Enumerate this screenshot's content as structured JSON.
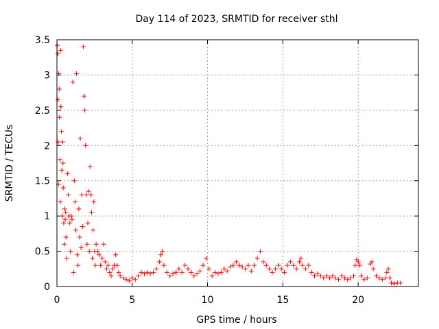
{
  "chart_data": {
    "type": "scatter",
    "title": "Day 114 of 2023, SRMTID for receiver sthl",
    "xlabel": "GPS time / hours",
    "ylabel": "SRMTID / TECUs",
    "xlim": [
      0,
      24
    ],
    "ylim": [
      0,
      3.5
    ],
    "xticks": [
      0,
      5,
      10,
      15,
      20
    ],
    "xtick_labels": [
      "0",
      "5",
      "10",
      "15",
      "20"
    ],
    "yticks": [
      0,
      0.5,
      1,
      1.5,
      2,
      2.5,
      3,
      3.5
    ],
    "ytick_labels": [
      "0",
      "0.5",
      "1",
      "1.5",
      "2",
      "2.5",
      "3",
      "3.5"
    ],
    "grid": true,
    "marker": "+",
    "color": "#ff0000",
    "series": [
      {
        "name": "SRMTID",
        "points": [
          [
            0.02,
            3.42
          ],
          [
            0.05,
            3.3
          ],
          [
            0.06,
            2.65
          ],
          [
            0.08,
            2.05
          ],
          [
            0.1,
            1.45
          ],
          [
            0.12,
            3.02
          ],
          [
            0.15,
            2.8
          ],
          [
            0.17,
            2.4
          ],
          [
            0.2,
            1.8
          ],
          [
            0.22,
            1.2
          ],
          [
            0.24,
            3.35
          ],
          [
            0.26,
            2.55
          ],
          [
            0.3,
            2.2
          ],
          [
            0.32,
            1.65
          ],
          [
            0.35,
            1.0
          ],
          [
            0.38,
            2.05
          ],
          [
            0.4,
            1.75
          ],
          [
            0.42,
            1.4
          ],
          [
            0.45,
            0.9
          ],
          [
            0.48,
            0.6
          ],
          [
            0.5,
            1.1
          ],
          [
            0.55,
            0.95
          ],
          [
            0.58,
            1.05
          ],
          [
            0.6,
            0.7
          ],
          [
            0.65,
            0.4
          ],
          [
            0.7,
            1.6
          ],
          [
            0.75,
            1.3
          ],
          [
            0.8,
            1.0
          ],
          [
            0.85,
            0.9
          ],
          [
            0.9,
            0.5
          ],
          [
            0.95,
            1.0
          ],
          [
            1.0,
            0.95
          ],
          [
            1.05,
            2.9
          ],
          [
            1.1,
            0.2
          ],
          [
            1.15,
            1.5
          ],
          [
            1.2,
            1.2
          ],
          [
            1.25,
            0.8
          ],
          [
            1.3,
            3.02
          ],
          [
            1.35,
            0.45
          ],
          [
            1.4,
            0.3
          ],
          [
            1.45,
            1.1
          ],
          [
            1.5,
            0.7
          ],
          [
            1.55,
            2.1
          ],
          [
            1.6,
            0.55
          ],
          [
            1.65,
            1.3
          ],
          [
            1.7,
            0.85
          ],
          [
            1.75,
            3.4
          ],
          [
            1.8,
            2.7
          ],
          [
            1.85,
            2.5
          ],
          [
            1.9,
            2.0
          ],
          [
            1.95,
            1.3
          ],
          [
            2.0,
            0.6
          ],
          [
            2.05,
            0.9
          ],
          [
            2.1,
            1.35
          ],
          [
            2.15,
            0.5
          ],
          [
            2.2,
            1.7
          ],
          [
            2.25,
            1.3
          ],
          [
            2.3,
            1.05
          ],
          [
            2.35,
            0.4
          ],
          [
            2.4,
            0.8
          ],
          [
            2.45,
            1.2
          ],
          [
            2.5,
            0.5
          ],
          [
            2.55,
            0.3
          ],
          [
            2.6,
            0.6
          ],
          [
            2.7,
            0.5
          ],
          [
            2.8,
            0.45
          ],
          [
            2.9,
            0.3
          ],
          [
            3.0,
            0.4
          ],
          [
            3.1,
            0.6
          ],
          [
            3.2,
            0.35
          ],
          [
            3.3,
            0.25
          ],
          [
            3.4,
            0.3
          ],
          [
            3.5,
            0.2
          ],
          [
            3.6,
            0.15
          ],
          [
            3.7,
            0.25
          ],
          [
            3.8,
            0.3
          ],
          [
            3.9,
            0.45
          ],
          [
            4.0,
            0.3
          ],
          [
            4.1,
            0.2
          ],
          [
            4.2,
            0.15
          ],
          [
            4.4,
            0.12
          ],
          [
            4.6,
            0.1
          ],
          [
            4.8,
            0.08
          ],
          [
            5.0,
            0.12
          ],
          [
            5.2,
            0.1
          ],
          [
            5.4,
            0.15
          ],
          [
            5.6,
            0.2
          ],
          [
            5.8,
            0.18
          ],
          [
            6.0,
            0.2
          ],
          [
            6.2,
            0.18
          ],
          [
            6.4,
            0.2
          ],
          [
            6.6,
            0.25
          ],
          [
            6.8,
            0.35
          ],
          [
            6.9,
            0.45
          ],
          [
            7.0,
            0.5
          ],
          [
            7.1,
            0.3
          ],
          [
            7.3,
            0.2
          ],
          [
            7.5,
            0.15
          ],
          [
            7.7,
            0.18
          ],
          [
            7.9,
            0.2
          ],
          [
            8.1,
            0.25
          ],
          [
            8.3,
            0.2
          ],
          [
            8.5,
            0.3
          ],
          [
            8.7,
            0.25
          ],
          [
            8.9,
            0.2
          ],
          [
            9.1,
            0.15
          ],
          [
            9.3,
            0.18
          ],
          [
            9.5,
            0.22
          ],
          [
            9.7,
            0.3
          ],
          [
            9.9,
            0.4
          ],
          [
            10.1,
            0.25
          ],
          [
            10.3,
            0.15
          ],
          [
            10.5,
            0.2
          ],
          [
            10.7,
            0.18
          ],
          [
            10.9,
            0.2
          ],
          [
            11.1,
            0.25
          ],
          [
            11.3,
            0.22
          ],
          [
            11.5,
            0.28
          ],
          [
            11.7,
            0.3
          ],
          [
            11.9,
            0.35
          ],
          [
            12.1,
            0.3
          ],
          [
            12.3,
            0.28
          ],
          [
            12.5,
            0.25
          ],
          [
            12.7,
            0.3
          ],
          [
            12.9,
            0.22
          ],
          [
            13.1,
            0.3
          ],
          [
            13.3,
            0.4
          ],
          [
            13.5,
            0.5
          ],
          [
            13.7,
            0.35
          ],
          [
            13.9,
            0.3
          ],
          [
            14.1,
            0.25
          ],
          [
            14.3,
            0.2
          ],
          [
            14.5,
            0.25
          ],
          [
            14.7,
            0.3
          ],
          [
            14.9,
            0.25
          ],
          [
            15.1,
            0.2
          ],
          [
            15.3,
            0.3
          ],
          [
            15.5,
            0.35
          ],
          [
            15.7,
            0.3
          ],
          [
            15.9,
            0.25
          ],
          [
            16.1,
            0.35
          ],
          [
            16.2,
            0.4
          ],
          [
            16.3,
            0.3
          ],
          [
            16.5,
            0.25
          ],
          [
            16.7,
            0.3
          ],
          [
            16.9,
            0.2
          ],
          [
            17.1,
            0.15
          ],
          [
            17.3,
            0.18
          ],
          [
            17.5,
            0.15
          ],
          [
            17.7,
            0.12
          ],
          [
            17.9,
            0.15
          ],
          [
            18.1,
            0.12
          ],
          [
            18.3,
            0.15
          ],
          [
            18.5,
            0.12
          ],
          [
            18.7,
            0.1
          ],
          [
            18.9,
            0.15
          ],
          [
            19.1,
            0.12
          ],
          [
            19.3,
            0.1
          ],
          [
            19.5,
            0.12
          ],
          [
            19.7,
            0.15
          ],
          [
            19.8,
            0.3
          ],
          [
            19.9,
            0.38
          ],
          [
            20.0,
            0.35
          ],
          [
            20.1,
            0.3
          ],
          [
            20.2,
            0.15
          ],
          [
            20.4,
            0.1
          ],
          [
            20.6,
            0.12
          ],
          [
            20.8,
            0.32
          ],
          [
            20.9,
            0.35
          ],
          [
            21.0,
            0.25
          ],
          [
            21.2,
            0.15
          ],
          [
            21.4,
            0.12
          ],
          [
            21.6,
            0.1
          ],
          [
            21.8,
            0.12
          ],
          [
            21.9,
            0.2
          ],
          [
            22.0,
            0.25
          ],
          [
            22.1,
            0.12
          ],
          [
            22.2,
            0.05
          ],
          [
            22.4,
            0.04
          ],
          [
            22.6,
            0.05
          ],
          [
            22.8,
            0.05
          ]
        ]
      }
    ]
  }
}
